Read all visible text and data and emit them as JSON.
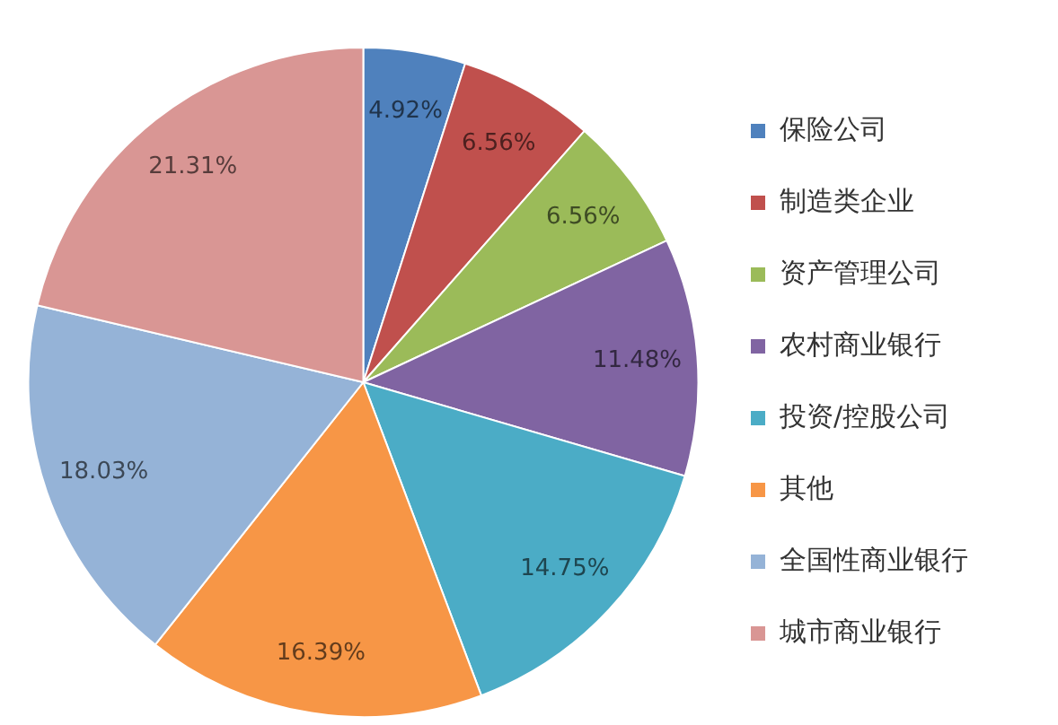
{
  "chart_data": {
    "type": "pie",
    "categories": [
      "保险公司",
      "制造类企业",
      "资产管理公司",
      "农村商业银行",
      "投资/控股公司",
      "其他",
      "全国性商业银行",
      "城市商业银行"
    ],
    "values": [
      4.92,
      6.56,
      6.56,
      11.48,
      14.75,
      16.39,
      18.03,
      21.31
    ],
    "colors": [
      "#4f81bd",
      "#c0504d",
      "#9bbb59",
      "#8064a2",
      "#4bacc6",
      "#f79646",
      "#95b3d7",
      "#d99694"
    ],
    "value_labels": [
      "4.92%",
      "6.56%",
      "6.56%",
      "11.48%",
      "14.75%",
      "16.39%",
      "18.03%",
      "21.31%"
    ],
    "legend": "right"
  }
}
